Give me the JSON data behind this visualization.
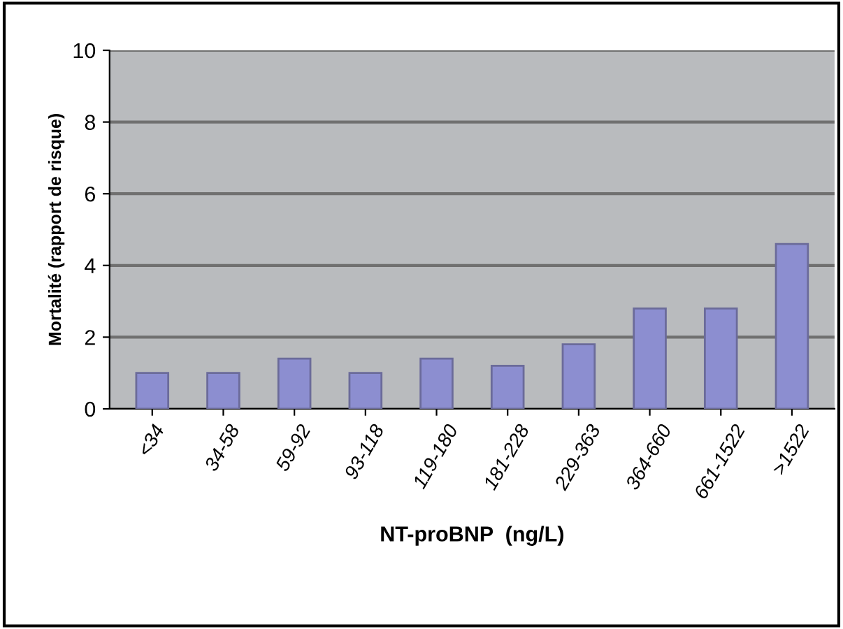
{
  "chart_data": {
    "type": "bar",
    "xlabel": "NT-proBNP  (ng/L)",
    "ylabel": "Mortalité (rapport de risque)",
    "categories": [
      "<34",
      "34-58",
      "59-92",
      "93-118",
      "119-180",
      "181-228",
      "229-363",
      "364-660",
      "661-1522",
      ">1522"
    ],
    "values": [
      1.0,
      1.0,
      1.4,
      1.0,
      1.4,
      1.2,
      1.8,
      2.8,
      2.8,
      4.6
    ],
    "color": "#8c8ed0",
    "ylim": [
      0,
      10
    ],
    "yticks": [
      0,
      2,
      4,
      6,
      8,
      10
    ],
    "grid": "y"
  }
}
